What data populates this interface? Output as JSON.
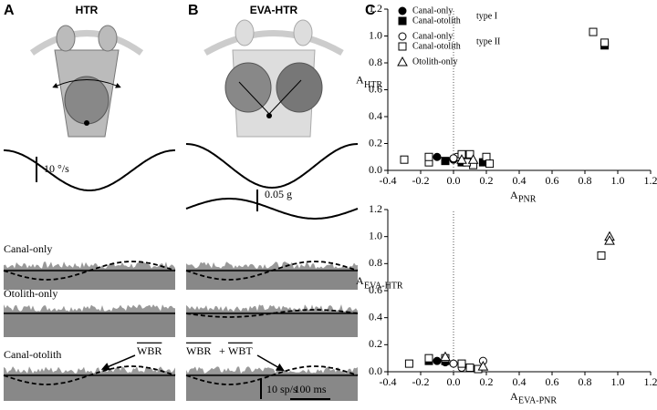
{
  "panels": {
    "a": {
      "label": "A",
      "title": "HTR"
    },
    "b": {
      "label": "B",
      "title": "EVA-HTR"
    },
    "c": {
      "label": "C"
    }
  },
  "traces": {
    "velocity_scale": "10 °/s",
    "accel_scale": "0.05 g",
    "rows": [
      "Canal-only",
      "Otolith-only",
      "Canal-otolith"
    ],
    "wbr": "WBR",
    "plus": "+",
    "wbt": "WBT",
    "rate_scale": "10 sp/s",
    "time_scale": "100 ms"
  },
  "chart_data": [
    {
      "type": "scatter",
      "xlabel": {
        "main": "A",
        "sub": "PNR"
      },
      "ylabel": {
        "main": "A",
        "sub": "HTR"
      },
      "xlim": [
        -0.4,
        1.2
      ],
      "ylim": [
        0,
        1.2
      ],
      "xticks": [
        -0.4,
        -0.2,
        {
          "value": 0,
          "label": "0.0"
        },
        0.2,
        0.4,
        0.6,
        0.8,
        {
          "value": 1,
          "label": "1.0"
        },
        1.2
      ],
      "yticks": [
        {
          "value": 0,
          "label": "0.0"
        },
        0.2,
        0.4,
        0.6,
        0.8,
        {
          "value": 1,
          "label": "1.0"
        },
        1.2
      ],
      "vline": 0,
      "legend_groups": [
        "type I",
        "type II"
      ],
      "series": [
        {
          "name": "Canal-only",
          "marker": "circle",
          "filled": true,
          "x": [
            -0.1,
            0.0
          ],
          "y": [
            0.1,
            0.08
          ]
        },
        {
          "name": "Canal-otolith",
          "marker": "square",
          "filled": true,
          "x": [
            0.92,
            0.05,
            0.18,
            -0.05
          ],
          "y": [
            0.93,
            0.06,
            0.06,
            0.07
          ]
        },
        {
          "name": "Canal-only",
          "marker": "circle",
          "filled": false,
          "x": [
            -0.15,
            0.02,
            0.1,
            0.0
          ],
          "y": [
            0.08,
            0.1,
            0.1,
            0.09
          ]
        },
        {
          "name": "Canal-otolith",
          "marker": "square",
          "filled": false,
          "x": [
            -0.3,
            -0.15,
            -0.15,
            0.05,
            0.1,
            0.2,
            0.22,
            0.85,
            0.92,
            0.12,
            0.08
          ],
          "y": [
            0.08,
            0.06,
            0.1,
            0.12,
            0.12,
            0.1,
            0.05,
            1.03,
            0.95,
            0.04,
            0.06
          ]
        },
        {
          "name": "Otolith-only",
          "marker": "triangle",
          "filled": false,
          "x": [
            0.05,
            0.12
          ],
          "y": [
            0.08,
            0.08
          ]
        }
      ]
    },
    {
      "type": "scatter",
      "xlabel": {
        "main": "A",
        "sub": "EVA-PNR"
      },
      "ylabel": {
        "main": "A",
        "sub": "EVA-HTR"
      },
      "xlim": [
        -0.4,
        1.2
      ],
      "ylim": [
        0,
        1.2
      ],
      "xticks": [
        -0.4,
        -0.2,
        {
          "value": 0,
          "label": "0.0"
        },
        0.2,
        0.4,
        0.6,
        0.8,
        {
          "value": 1,
          "label": "1.0"
        },
        1.2
      ],
      "yticks": [
        {
          "value": 0,
          "label": "0.0"
        },
        0.2,
        0.4,
        0.6,
        0.8,
        {
          "value": 1,
          "label": "1.0"
        },
        1.2
      ],
      "vline": 0,
      "series": [
        {
          "marker": "circle",
          "filled": true,
          "x": [
            -0.1,
            -0.05
          ],
          "y": [
            0.08,
            0.07
          ]
        },
        {
          "marker": "square",
          "filled": true,
          "x": [
            -0.15,
            -0.05
          ],
          "y": [
            0.08,
            0.08
          ]
        },
        {
          "marker": "circle",
          "filled": false,
          "x": [
            0.18,
            0.0,
            0.05
          ],
          "y": [
            0.08,
            0.06,
            0.03
          ]
        },
        {
          "marker": "square",
          "filled": false,
          "x": [
            -0.27,
            -0.15,
            -0.05,
            0.05,
            0.1,
            0.15,
            0.9
          ],
          "y": [
            0.06,
            0.1,
            0.1,
            0.06,
            0.03,
            0.02,
            0.86
          ]
        },
        {
          "marker": "triangle",
          "filled": false,
          "x": [
            -0.05,
            0.18,
            0.95,
            0.95
          ],
          "y": [
            0.11,
            0.04,
            1.0,
            0.97
          ]
        }
      ]
    }
  ]
}
